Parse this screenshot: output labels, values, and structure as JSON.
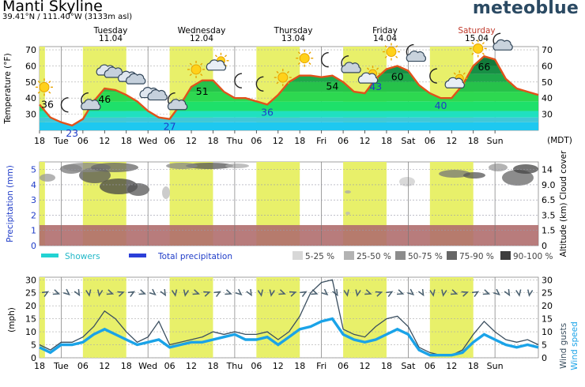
{
  "header": {
    "title": "Manti Skyline",
    "coords": "39.41°N / 111.40°W (3133m asl)",
    "brand": "meteoblue"
  },
  "days": [
    {
      "name": "Tuesday",
      "date": "11.04",
      "color": "#000000"
    },
    {
      "name": "Wednesday",
      "date": "12.04",
      "color": "#000000"
    },
    {
      "name": "Thursday",
      "date": "13.04",
      "color": "#000000"
    },
    {
      "name": "Friday",
      "date": "14.04",
      "color": "#000000"
    },
    {
      "name": "Saturday",
      "date": "15.04",
      "color": "#c0392b"
    }
  ],
  "x_ticks": [
    "18",
    "Tue",
    "06",
    "12",
    "18",
    "Wed",
    "06",
    "12",
    "18",
    "Thu",
    "06",
    "12",
    "18",
    "Fri",
    "06",
    "12",
    "18",
    "Sat",
    "06",
    "12",
    "18",
    "Sun"
  ],
  "timezone": "(MDT)",
  "colors": {
    "daylight": "#e8f06a",
    "temp_line": "#e0521b",
    "low_label": "#1f3cc8",
    "precip_axis": "#1f3cc8",
    "showers": "#22d3d3",
    "total_precip": "#2b3fd8",
    "wind_speed": "#1aa3e8",
    "wind_gusts": "#3a4e5f",
    "cloud_band": "#b06e6e"
  },
  "chart_data": [
    {
      "type": "area",
      "ylabel": "Temperature (°F)",
      "yticks_left": [
        30,
        40,
        50,
        60,
        70
      ],
      "yticks_right": [
        30,
        40,
        50,
        60,
        70
      ],
      "ylim": [
        20,
        72
      ],
      "x_hours": [
        0,
        3,
        6,
        9,
        12,
        15,
        18,
        21,
        24,
        27,
        30,
        33,
        36,
        39,
        42,
        45,
        48,
        51,
        54,
        57,
        60,
        63,
        66,
        69,
        72,
        75,
        78,
        81,
        84,
        87,
        90,
        93,
        96,
        99,
        102,
        105,
        108,
        111,
        114,
        117,
        120,
        123,
        126,
        129,
        132,
        135,
        138
      ],
      "temperature": [
        36,
        28,
        25,
        23,
        27,
        38,
        46,
        45,
        42,
        38,
        32,
        28,
        27,
        36,
        47,
        51,
        51,
        44,
        40,
        40,
        38,
        36,
        42,
        50,
        54,
        54,
        53,
        54,
        50,
        44,
        43,
        52,
        58,
        60,
        57,
        48,
        43,
        40,
        40,
        48,
        60,
        66,
        64,
        52,
        46,
        44,
        42
      ],
      "labels_high": [
        {
          "hour": 18,
          "value": "46"
        },
        {
          "hour": 45,
          "value": "51"
        },
        {
          "hour": 81,
          "value": "54"
        },
        {
          "hour": 99,
          "value": "60"
        },
        {
          "hour": 123,
          "value": "66"
        }
      ],
      "labels_low": [
        {
          "hour": 0,
          "value": "36",
          "dark": true
        },
        {
          "hour": 9,
          "value": "23"
        },
        {
          "hour": 36,
          "value": "27"
        },
        {
          "hour": 63,
          "value": "36"
        },
        {
          "hour": 93,
          "value": "43"
        },
        {
          "hour": 111,
          "value": "40"
        }
      ],
      "icons": [
        {
          "hour": 0,
          "icon": "sun-icon"
        },
        {
          "hour": 6,
          "icon": "moon-icon"
        },
        {
          "hour": 12,
          "icon": "moon-cloud-icon"
        },
        {
          "hour": 18,
          "icon": "clouds-icon"
        },
        {
          "hour": 24,
          "icon": "clouds-icon"
        },
        {
          "hour": 30,
          "icon": "clouds-icon"
        },
        {
          "hour": 36,
          "icon": "moon-cloud-icon"
        },
        {
          "hour": 42,
          "icon": "sun-icon"
        },
        {
          "hour": 48,
          "icon": "sun-cloud-icon"
        },
        {
          "hour": 54,
          "icon": "moon-icon"
        },
        {
          "hour": 60,
          "icon": "moon-icon"
        },
        {
          "hour": 66,
          "icon": "sun-icon"
        },
        {
          "hour": 72,
          "icon": "sun-icon"
        },
        {
          "hour": 78,
          "icon": "moon-icon"
        },
        {
          "hour": 84,
          "icon": "moon-cloud-icon"
        },
        {
          "hour": 90,
          "icon": "sun-cloud-icon"
        },
        {
          "hour": 96,
          "icon": "sun-icon"
        },
        {
          "hour": 102,
          "icon": "moon-cloud-icon"
        },
        {
          "hour": 108,
          "icon": "moon-icon"
        },
        {
          "hour": 114,
          "icon": "sun-cloud-icon"
        },
        {
          "hour": 120,
          "icon": "sun-icon"
        },
        {
          "hour": 126,
          "icon": "moon-cloud-icon"
        }
      ]
    },
    {
      "type": "heatmap",
      "ylabel": "Precipitation (mm)",
      "ylabel_right": "Altitude (km) Cloud cover",
      "yticks_left": [
        0,
        1,
        2,
        3,
        4,
        5
      ],
      "yticks_right": [
        "0",
        "1.5",
        "3.5",
        "6.5",
        "9.0",
        "14"
      ],
      "legend": {
        "showers": "Showers",
        "total": "Total precipitation",
        "cloud": [
          "5-25 %",
          "25-50 %",
          "50-75 %",
          "75-90 %",
          "90-100 %"
        ],
        "cloud_colors": [
          "#d8d8d8",
          "#b3b3b3",
          "#8c8c8c",
          "#666666",
          "#3d3d3d"
        ]
      }
    },
    {
      "type": "line",
      "ylabel": "(mph)",
      "ylabel_right_gusts": "Wind gusts",
      "ylabel_right_speed": "Wind speed",
      "yticks_left": [
        0,
        5,
        10,
        15,
        20,
        25,
        30
      ],
      "yticks_right": [
        0,
        5,
        10,
        15,
        20,
        25,
        30
      ],
      "ylim": [
        0,
        30
      ],
      "x_hours": [
        0,
        3,
        6,
        9,
        12,
        15,
        18,
        21,
        24,
        27,
        30,
        33,
        36,
        39,
        42,
        45,
        48,
        51,
        54,
        57,
        60,
        63,
        66,
        69,
        72,
        75,
        78,
        81,
        84,
        87,
        90,
        93,
        96,
        99,
        102,
        105,
        108,
        111,
        114,
        117,
        120,
        123,
        126,
        129,
        132,
        135,
        138
      ],
      "wind_speed": [
        4,
        2,
        5,
        5,
        6,
        9,
        11,
        9,
        7,
        5,
        6,
        7,
        4,
        5,
        6,
        6,
        7,
        8,
        9,
        7,
        7,
        8,
        5,
        8,
        11,
        12,
        14,
        15,
        9,
        7,
        6,
        7,
        9,
        11,
        9,
        3,
        1,
        1,
        1,
        2,
        6,
        9,
        7,
        5,
        4,
        5,
        4
      ],
      "wind_gusts": [
        5,
        3,
        6,
        6,
        8,
        12,
        18,
        15,
        10,
        6,
        8,
        14,
        5,
        6,
        7,
        8,
        10,
        9,
        10,
        9,
        9,
        10,
        7,
        10,
        16,
        25,
        29,
        30,
        11,
        9,
        8,
        12,
        15,
        16,
        12,
        4,
        2,
        1,
        1,
        3,
        9,
        14,
        10,
        7,
        6,
        7,
        5
      ]
    }
  ]
}
